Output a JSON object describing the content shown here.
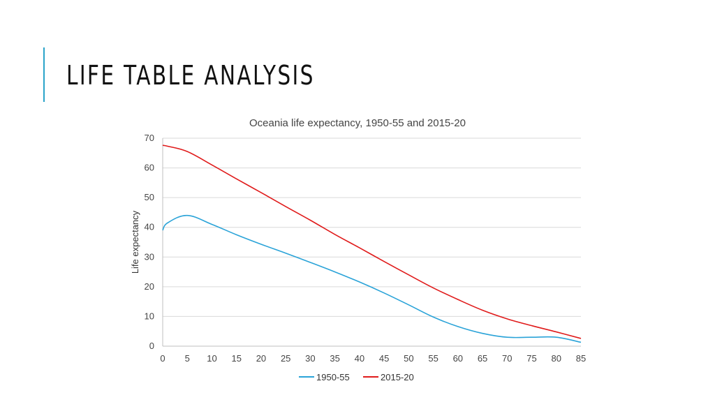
{
  "slide": {
    "title": "LIFE TABLE ANALYSIS"
  },
  "colors": {
    "accent": "#2aa3c9",
    "series_1950": "#2aa3d8",
    "series_2015": "#e01b1b",
    "grid": "#d9d9d9"
  },
  "chart_data": {
    "type": "line",
    "title": "Oceania life expectancy, 1950-55 and 2015-20",
    "xlabel": "",
    "ylabel": "Life expectancy",
    "xlim": [
      0,
      85
    ],
    "ylim": [
      0,
      70
    ],
    "x": [
      0,
      1,
      5,
      10,
      15,
      20,
      25,
      30,
      35,
      40,
      45,
      50,
      55,
      60,
      65,
      70,
      75,
      80,
      85
    ],
    "xticks": [
      "0",
      "5",
      "10",
      "15",
      "20",
      "25",
      "30",
      "35",
      "40",
      "45",
      "50",
      "55",
      "60",
      "65",
      "70",
      "75",
      "80",
      "85"
    ],
    "yticks": [
      "0",
      "10",
      "20",
      "30",
      "40",
      "50",
      "60",
      "70"
    ],
    "grid": true,
    "legend": "bottom",
    "series": [
      {
        "name": "1950-55",
        "values": [
          39,
          41.5,
          44,
          41,
          37.5,
          34.3,
          31.3,
          28.2,
          25,
          21.6,
          17.9,
          13.9,
          9.8,
          6.6,
          4.3,
          3.0,
          3.0,
          3.0,
          1.3
        ]
      },
      {
        "name": "2015-20",
        "values": [
          67.6,
          67.3,
          65.5,
          61,
          56.3,
          51.7,
          47,
          42.4,
          37.6,
          33.1,
          28.5,
          24,
          19.6,
          15.7,
          12.1,
          9.2,
          6.9,
          4.8,
          2.6
        ]
      }
    ]
  }
}
